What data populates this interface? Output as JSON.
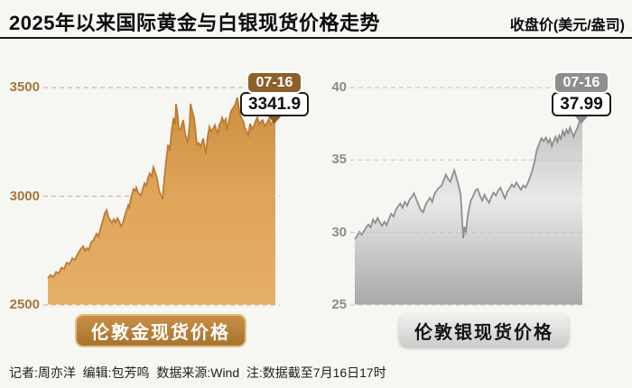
{
  "header": {
    "title": "2025年以来国际黄金与白银现货价格走势",
    "unit_label": "收盘价(美元/盎司)"
  },
  "footer": {
    "credits": "记者:周亦洋  编辑:包芳鸣  数据来源:Wind  注:数据截至7月16日17时"
  },
  "chart_data": [
    {
      "type": "area",
      "name": "london-gold-spot",
      "title": "伦敦金现货价格",
      "unit": "美元/盎司",
      "x_range": "2025-01-01 to 2025-07-16",
      "ylim": [
        2500,
        3500
      ],
      "yticks": [
        3500,
        3000,
        2500
      ],
      "grid": "dashed",
      "callout": {
        "date": "07-16",
        "value": "3341.9"
      },
      "colors": {
        "line": "#bc7c31",
        "fill_top": "#cd8f41",
        "fill_mid": "#dfa458",
        "fill_bottom": "#e5b069",
        "axis_label": "#a5773c",
        "gridline": "#cfb285",
        "badge_bg": "#8d6029",
        "tag_bg_top": "#c89045",
        "tag_bg_bottom": "#a87330"
      },
      "points": [
        [
          0.0,
          2623
        ],
        [
          0.012,
          2638
        ],
        [
          0.024,
          2628
        ],
        [
          0.036,
          2652
        ],
        [
          0.048,
          2645
        ],
        [
          0.06,
          2672
        ],
        [
          0.071,
          2665
        ],
        [
          0.083,
          2695
        ],
        [
          0.095,
          2688
        ],
        [
          0.107,
          2715
        ],
        [
          0.119,
          2708
        ],
        [
          0.131,
          2735
        ],
        [
          0.143,
          2755
        ],
        [
          0.155,
          2770
        ],
        [
          0.163,
          2748
        ],
        [
          0.171,
          2762
        ],
        [
          0.179,
          2752
        ],
        [
          0.19,
          2788
        ],
        [
          0.202,
          2800
        ],
        [
          0.214,
          2828
        ],
        [
          0.222,
          2815
        ],
        [
          0.234,
          2862
        ],
        [
          0.242,
          2890
        ],
        [
          0.25,
          2920
        ],
        [
          0.258,
          2936
        ],
        [
          0.266,
          2905
        ],
        [
          0.274,
          2890
        ],
        [
          0.282,
          2878
        ],
        [
          0.29,
          2895
        ],
        [
          0.298,
          2880
        ],
        [
          0.306,
          2899
        ],
        [
          0.314,
          2882
        ],
        [
          0.322,
          2862
        ],
        [
          0.33,
          2878
        ],
        [
          0.337,
          2905
        ],
        [
          0.345,
          2932
        ],
        [
          0.353,
          2958
        ],
        [
          0.357,
          2948
        ],
        [
          0.365,
          2990
        ],
        [
          0.373,
          3020
        ],
        [
          0.377,
          3033
        ],
        [
          0.385,
          3025
        ],
        [
          0.389,
          3040
        ],
        [
          0.397,
          3018
        ],
        [
          0.405,
          3008
        ],
        [
          0.409,
          3000
        ],
        [
          0.417,
          3035
        ],
        [
          0.425,
          3060
        ],
        [
          0.433,
          3048
        ],
        [
          0.44,
          3085
        ],
        [
          0.448,
          3105
        ],
        [
          0.456,
          3090
        ],
        [
          0.464,
          3133
        ],
        [
          0.472,
          3110
        ],
        [
          0.48,
          3080
        ],
        [
          0.488,
          3030
        ],
        [
          0.496,
          3005
        ],
        [
          0.504,
          2990
        ],
        [
          0.512,
          3080
        ],
        [
          0.52,
          3160
        ],
        [
          0.528,
          3237
        ],
        [
          0.536,
          3210
        ],
        [
          0.544,
          3300
        ],
        [
          0.552,
          3360
        ],
        [
          0.56,
          3330
        ],
        [
          0.563,
          3425
        ],
        [
          0.571,
          3370
        ],
        [
          0.575,
          3310
        ],
        [
          0.583,
          3307
        ],
        [
          0.595,
          3350
        ],
        [
          0.603,
          3290
        ],
        [
          0.615,
          3245
        ],
        [
          0.623,
          3330
        ],
        [
          0.627,
          3425
        ],
        [
          0.635,
          3390
        ],
        [
          0.643,
          3360
        ],
        [
          0.655,
          3237
        ],
        [
          0.663,
          3245
        ],
        [
          0.671,
          3228
        ],
        [
          0.683,
          3266
        ],
        [
          0.69,
          3220
        ],
        [
          0.694,
          3195
        ],
        [
          0.702,
          3270
        ],
        [
          0.71,
          3320
        ],
        [
          0.718,
          3298
        ],
        [
          0.726,
          3310
        ],
        [
          0.734,
          3328
        ],
        [
          0.742,
          3300
        ],
        [
          0.746,
          3286
        ],
        [
          0.754,
          3330
        ],
        [
          0.762,
          3345
        ],
        [
          0.766,
          3361
        ],
        [
          0.774,
          3340
        ],
        [
          0.782,
          3355
        ],
        [
          0.786,
          3300
        ],
        [
          0.794,
          3340
        ],
        [
          0.802,
          3380
        ],
        [
          0.806,
          3392
        ],
        [
          0.814,
          3405
        ],
        [
          0.821,
          3417
        ],
        [
          0.829,
          3440
        ],
        [
          0.833,
          3454
        ],
        [
          0.841,
          3400
        ],
        [
          0.845,
          3375
        ],
        [
          0.853,
          3355
        ],
        [
          0.861,
          3340
        ],
        [
          0.865,
          3315
        ],
        [
          0.873,
          3300
        ],
        [
          0.881,
          3280
        ],
        [
          0.889,
          3334
        ],
        [
          0.897,
          3310
        ],
        [
          0.905,
          3322
        ],
        [
          0.913,
          3345
        ],
        [
          0.921,
          3363
        ],
        [
          0.929,
          3330
        ],
        [
          0.937,
          3345
        ],
        [
          0.945,
          3350
        ],
        [
          0.953,
          3322
        ],
        [
          0.961,
          3335
        ],
        [
          0.972,
          3355
        ],
        [
          0.98,
          3330
        ],
        [
          0.988,
          3342
        ],
        [
          1.0,
          3341.9
        ]
      ]
    },
    {
      "type": "area",
      "name": "london-silver-spot",
      "title": "伦敦银现货价格",
      "unit": "美元/盎司",
      "x_range": "2025-01-01 to 2025-07-16",
      "ylim": [
        25,
        40
      ],
      "yticks": [
        40,
        35,
        30,
        25
      ],
      "grid": "dashed",
      "callout": {
        "date": "07-16",
        "value": "37.99"
      },
      "colors": {
        "line": "#8f8f8f",
        "fill_top": "#c0c0c0",
        "fill_mid": "#e9e9e9",
        "fill_bottom": "#a9a9a9",
        "axis_label": "#8c8c8c",
        "gridline": "#c4c4c4",
        "badge_bg": "#8e8e8e",
        "tag_bg_top": "#f1f1ef",
        "tag_bg_bottom": "#ccccca"
      },
      "points": [
        [
          0.0,
          29.55
        ],
        [
          0.01,
          29.75
        ],
        [
          0.02,
          30.05
        ],
        [
          0.03,
          29.85
        ],
        [
          0.04,
          30.1
        ],
        [
          0.05,
          30.35
        ],
        [
          0.06,
          30.55
        ],
        [
          0.07,
          30.35
        ],
        [
          0.08,
          30.9
        ],
        [
          0.09,
          30.65
        ],
        [
          0.1,
          31.0
        ],
        [
          0.11,
          30.7
        ],
        [
          0.12,
          30.45
        ],
        [
          0.13,
          30.75
        ],
        [
          0.14,
          30.5
        ],
        [
          0.15,
          30.95
        ],
        [
          0.16,
          31.3
        ],
        [
          0.17,
          31.1
        ],
        [
          0.18,
          31.55
        ],
        [
          0.19,
          31.8
        ],
        [
          0.2,
          32.0
        ],
        [
          0.21,
          31.7
        ],
        [
          0.22,
          32.1
        ],
        [
          0.23,
          31.85
        ],
        [
          0.24,
          32.25
        ],
        [
          0.25,
          32.45
        ],
        [
          0.26,
          32.7
        ],
        [
          0.27,
          32.3
        ],
        [
          0.28,
          31.9
        ],
        [
          0.29,
          31.55
        ],
        [
          0.3,
          31.4
        ],
        [
          0.31,
          31.85
        ],
        [
          0.32,
          32.15
        ],
        [
          0.33,
          32.4
        ],
        [
          0.34,
          32.1
        ],
        [
          0.35,
          32.65
        ],
        [
          0.36,
          32.9
        ],
        [
          0.37,
          33.1
        ],
        [
          0.38,
          33.2
        ],
        [
          0.39,
          33.6
        ],
        [
          0.4,
          34.0
        ],
        [
          0.41,
          33.7
        ],
        [
          0.42,
          33.5
        ],
        [
          0.428,
          33.9
        ],
        [
          0.437,
          34.3
        ],
        [
          0.445,
          33.9
        ],
        [
          0.455,
          33.3
        ],
        [
          0.465,
          32.6
        ],
        [
          0.47,
          31.4
        ],
        [
          0.476,
          29.6
        ],
        [
          0.482,
          30.4
        ],
        [
          0.488,
          29.9
        ],
        [
          0.494,
          30.9
        ],
        [
          0.5,
          31.5
        ],
        [
          0.51,
          32.2
        ],
        [
          0.52,
          32.5
        ],
        [
          0.53,
          32.9
        ],
        [
          0.54,
          33.0
        ],
        [
          0.55,
          32.55
        ],
        [
          0.56,
          32.2
        ],
        [
          0.57,
          32.6
        ],
        [
          0.58,
          32.3
        ],
        [
          0.59,
          32.05
        ],
        [
          0.6,
          32.45
        ],
        [
          0.61,
          32.75
        ],
        [
          0.62,
          32.55
        ],
        [
          0.63,
          32.9
        ],
        [
          0.64,
          33.1
        ],
        [
          0.65,
          32.7
        ],
        [
          0.66,
          32.35
        ],
        [
          0.67,
          32.8
        ],
        [
          0.68,
          33.05
        ],
        [
          0.69,
          33.3
        ],
        [
          0.7,
          33.15
        ],
        [
          0.71,
          33.45
        ],
        [
          0.72,
          33.2
        ],
        [
          0.73,
          32.95
        ],
        [
          0.74,
          33.25
        ],
        [
          0.75,
          33.1
        ],
        [
          0.76,
          33.4
        ],
        [
          0.77,
          33.8
        ],
        [
          0.78,
          34.3
        ],
        [
          0.79,
          34.9
        ],
        [
          0.8,
          35.7
        ],
        [
          0.81,
          36.1
        ],
        [
          0.82,
          36.5
        ],
        [
          0.83,
          36.3
        ],
        [
          0.84,
          36.55
        ],
        [
          0.85,
          36.2
        ],
        [
          0.858,
          36.45
        ],
        [
          0.866,
          35.95
        ],
        [
          0.874,
          36.3
        ],
        [
          0.882,
          36.6
        ],
        [
          0.89,
          36.25
        ],
        [
          0.898,
          36.7
        ],
        [
          0.906,
          36.45
        ],
        [
          0.914,
          37.0
        ],
        [
          0.922,
          36.7
        ],
        [
          0.93,
          37.1
        ],
        [
          0.938,
          36.85
        ],
        [
          0.946,
          37.25
        ],
        [
          0.954,
          36.9
        ],
        [
          0.962,
          36.6
        ],
        [
          0.97,
          36.95
        ],
        [
          0.978,
          37.2
        ],
        [
          0.986,
          37.6
        ],
        [
          0.993,
          38.1
        ],
        [
          1.0,
          37.99
        ]
      ]
    }
  ]
}
